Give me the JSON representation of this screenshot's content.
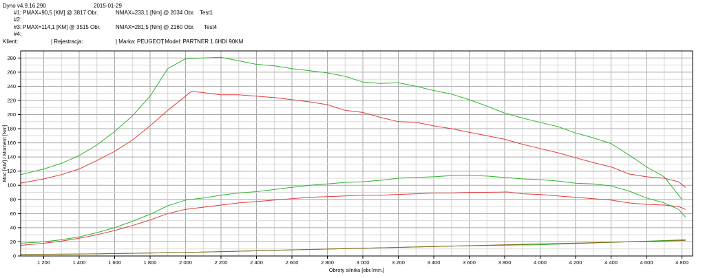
{
  "header": {
    "app_version": "Dyno v4.9.16.290",
    "date": "2015-01-29",
    "run1_label": "#1:",
    "run1_pmax": "PMAX=90,5 [KM] @ 3817 Obr.",
    "run1_nmax": "NMAX=233,1 [Nm] @ 2034 Obr.",
    "run1_name": "Test1",
    "run2_label": "#2:",
    "run3_label": "#3:",
    "run3_pmax": "PMAX=114,1 [KM] @ 3515 Obr.",
    "run3_nmax": "NMAX=281,5 [Nm] @ 2160 Obr.",
    "run3_name": "Test4",
    "run4_label": "#4:",
    "klient": "Klient:",
    "rejestracja": "| Rejestracja:",
    "marka": "| Marka: PEUGEOT",
    "model": "| Model: PARTNER 1.6HDI 90KM"
  },
  "chart_data": {
    "type": "line",
    "xlabel": "Obroty silnika [obr./min.]",
    "ylabel": "Moc [KM] / Moment [Nm]",
    "xlim": [
      1070,
      4860
    ],
    "ylim": [
      0,
      290
    ],
    "x_ticks": [
      1200,
      1400,
      1600,
      1800,
      2000,
      2200,
      2400,
      2600,
      2800,
      3000,
      3200,
      3400,
      3600,
      3800,
      4000,
      4200,
      4400,
      4600,
      4800
    ],
    "x_tick_labels": [
      "1 200",
      "1 400",
      "1 600",
      "1 800",
      "2 000",
      "2 200",
      "2 400",
      "2 600",
      "2 800",
      "3 000",
      "3 200",
      "3 400",
      "3 600",
      "3 800",
      "4 000",
      "4 200",
      "4 400",
      "4 600",
      "4 800"
    ],
    "y_ticks": [
      0,
      20,
      40,
      60,
      80,
      100,
      120,
      140,
      160,
      180,
      200,
      220,
      240,
      260,
      280
    ],
    "grid": true,
    "colors": {
      "test1": "#e03c3c",
      "test4": "#2fb52f",
      "loss": "#8a6a1a"
    },
    "series": [
      {
        "name": "Test4",
        "color": "#2fb52f",
        "x": [
          1070,
          1200,
          1300,
          1400,
          1500,
          1600,
          1700,
          1800,
          1900,
          2000,
          2100,
          2200,
          2300,
          2400,
          2500,
          2600,
          2700,
          2800,
          2900,
          3000,
          3100,
          3200,
          3300,
          3400,
          3500,
          3600,
          3700,
          3800,
          3900,
          4000,
          4100,
          4200,
          4300,
          4400,
          4500,
          4600,
          4700,
          4800
        ],
        "y": [
          115,
          123,
          131,
          142,
          157,
          176,
          198,
          226,
          265,
          279,
          280,
          281,
          276,
          271,
          269,
          265,
          262,
          259,
          254,
          246,
          244,
          245,
          240,
          234,
          229,
          221,
          212,
          202,
          195,
          189,
          183,
          174,
          167,
          159,
          143,
          126,
          112,
          80
        ]
      },
      {
        "name": "Test1",
        "color": "#e03c3c",
        "x": [
          1070,
          1200,
          1300,
          1400,
          1500,
          1600,
          1700,
          1800,
          1900,
          2000,
          2034,
          2100,
          2200,
          2300,
          2400,
          2500,
          2600,
          2700,
          2800,
          2900,
          3000,
          3100,
          3200,
          3300,
          3400,
          3500,
          3600,
          3700,
          3800,
          3900,
          4000,
          4100,
          4200,
          4300,
          4400,
          4500,
          4600,
          4700,
          4780,
          4820
        ],
        "y": [
          103,
          109,
          115,
          123,
          135,
          148,
          164,
          184,
          206,
          226,
          233,
          231,
          228,
          228,
          226,
          224,
          221,
          218,
          214,
          206,
          203,
          196,
          190,
          189,
          184,
          180,
          175,
          170,
          165,
          158,
          152,
          146,
          139,
          132,
          126,
          116,
          112,
          110,
          105,
          97
        ]
      },
      {
        "name": "Test4",
        "color": "#2fb52f",
        "x": [
          1070,
          1200,
          1300,
          1400,
          1500,
          1600,
          1700,
          1800,
          1900,
          2000,
          2100,
          2200,
          2300,
          2400,
          2500,
          2600,
          2700,
          2800,
          2900,
          3000,
          3100,
          3200,
          3300,
          3400,
          3515,
          3600,
          3700,
          3800,
          3900,
          4000,
          4100,
          4200,
          4300,
          4400,
          4500,
          4600,
          4700,
          4780,
          4820
        ],
        "y": [
          18,
          20,
          23,
          27,
          33,
          40,
          49,
          59,
          71,
          79,
          82,
          86,
          89,
          91,
          94,
          97,
          100,
          102,
          104,
          105,
          107,
          110,
          111,
          112,
          114,
          114,
          113,
          111,
          109,
          108,
          106,
          103,
          102,
          99,
          92,
          82,
          75,
          66,
          55
        ]
      },
      {
        "name": "Test1",
        "color": "#e03c3c",
        "x": [
          1070,
          1200,
          1300,
          1400,
          1500,
          1600,
          1700,
          1800,
          1900,
          2000,
          2100,
          2200,
          2300,
          2400,
          2500,
          2600,
          2700,
          2800,
          2900,
          3000,
          3100,
          3200,
          3300,
          3400,
          3500,
          3600,
          3700,
          3817,
          3900,
          4000,
          4100,
          4200,
          4300,
          4400,
          4500,
          4600,
          4700,
          4780,
          4820
        ],
        "y": [
          15,
          18,
          21,
          25,
          30,
          36,
          43,
          51,
          60,
          66,
          69,
          72,
          75,
          77,
          79,
          81,
          83,
          84,
          85,
          86,
          86,
          87,
          88,
          89,
          89,
          90,
          90,
          90.5,
          88,
          87,
          85,
          83,
          81,
          79,
          75,
          73,
          72,
          70,
          66
        ]
      },
      {
        "name": "Test4",
        "color": "#2fb52f",
        "x": [
          1070,
          1500,
          2000,
          2500,
          3000,
          3500,
          4000,
          4500,
          4820
        ],
        "y": [
          2,
          3,
          5,
          8,
          11,
          14,
          16,
          20,
          23
        ]
      },
      {
        "name": "Test1",
        "color": "#8a6a1a",
        "x": [
          1070,
          1500,
          2000,
          2500,
          3000,
          3500,
          4000,
          4500,
          4820
        ],
        "y": [
          2,
          3,
          5,
          8,
          11,
          14,
          17,
          20,
          22
        ]
      }
    ]
  }
}
